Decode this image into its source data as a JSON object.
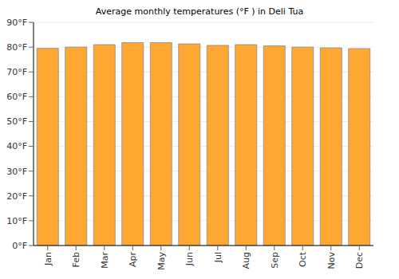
{
  "chart_data": {
    "type": "bar",
    "title": "Average monthly temperatures (°F ) in Deli Tua",
    "categories": [
      "Jan",
      "Feb",
      "Mar",
      "Apr",
      "May",
      "Jun",
      "Jul",
      "Aug",
      "Sep",
      "Oct",
      "Nov",
      "Dec"
    ],
    "values": [
      79.5,
      80,
      81,
      81.8,
      81.8,
      81.3,
      80.7,
      81,
      80.5,
      80,
      79.7,
      79.4
    ],
    "color": "#ffa733",
    "ylim": [
      0,
      90
    ],
    "yticks": [
      {
        "value": 0,
        "label": "0°F"
      },
      {
        "value": 10,
        "label": "10°F"
      },
      {
        "value": 20,
        "label": "20°F"
      },
      {
        "value": 30,
        "label": "30°F"
      },
      {
        "value": 40,
        "label": "40°F"
      },
      {
        "value": 50,
        "label": "50°F"
      },
      {
        "value": 60,
        "label": "60°F"
      },
      {
        "value": 70,
        "label": "70°F"
      },
      {
        "value": 80,
        "label": "80°F"
      },
      {
        "value": 90,
        "label": "90°F"
      }
    ],
    "grid": true
  }
}
